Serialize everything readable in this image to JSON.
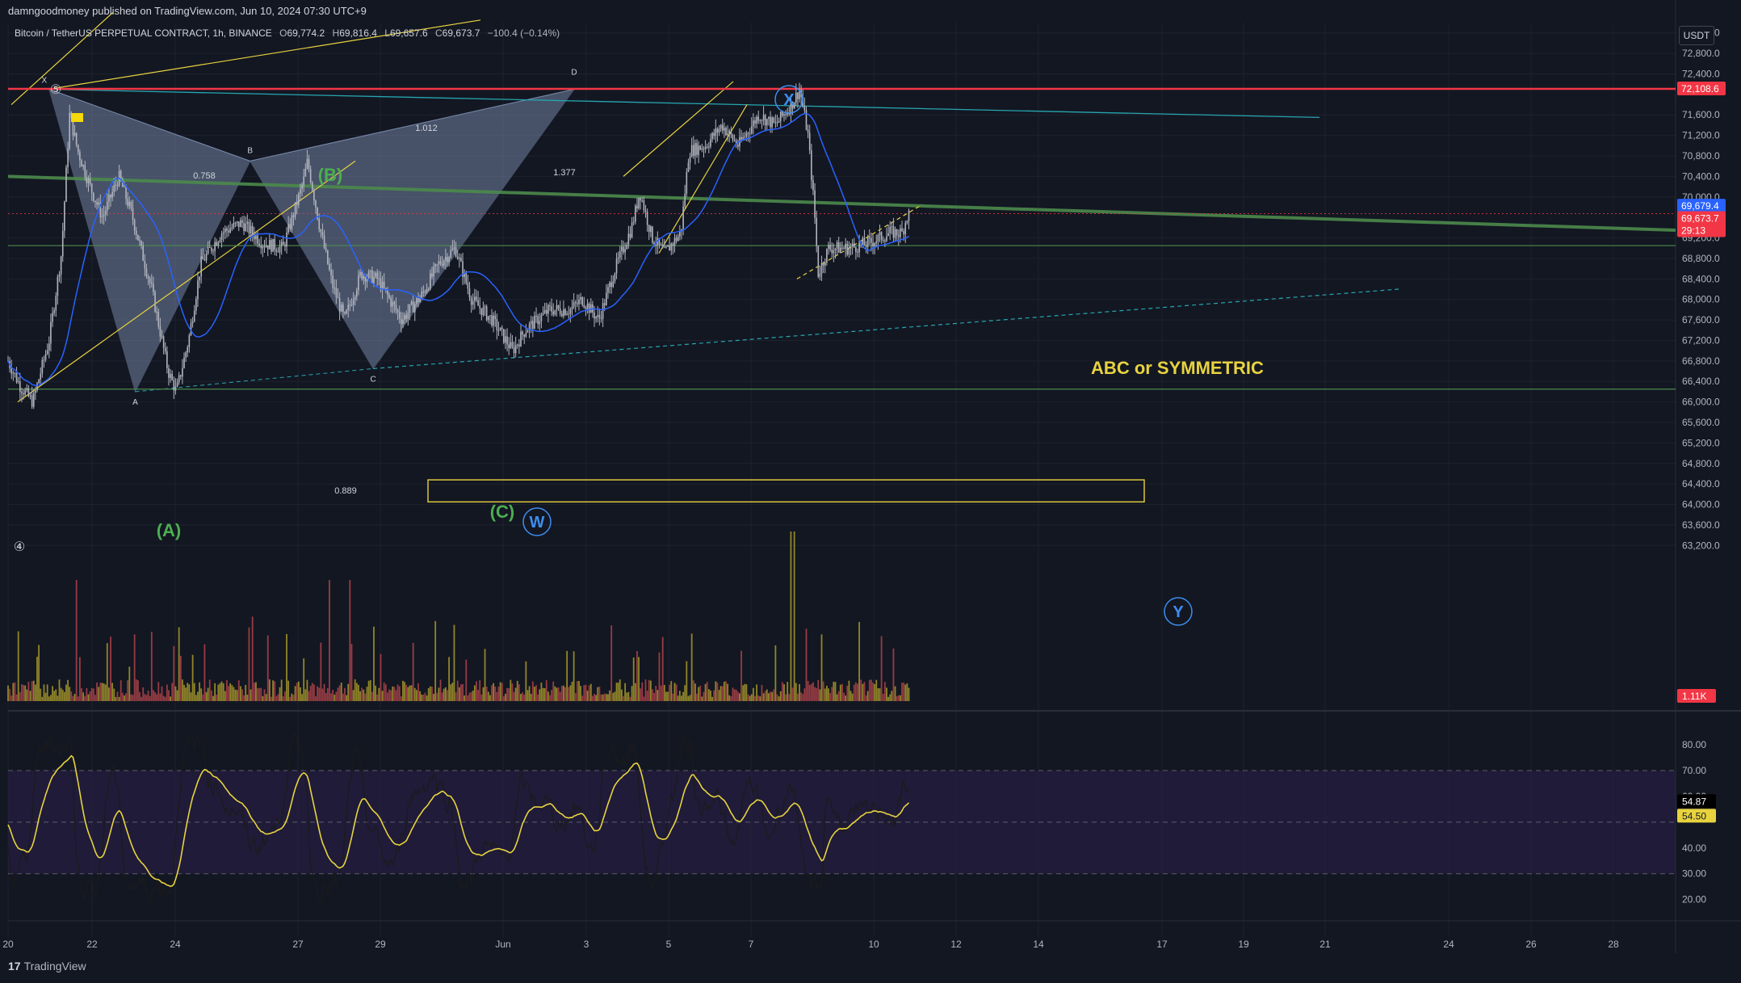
{
  "header": {
    "publisher": "damngoodmoney published on TradingView.com, Jun 10, 2024 07:30 UTC+9"
  },
  "symbol_bar": {
    "name": "Bitcoin / TetherUS PERPETUAL CONTRACT, 1h, BINANCE",
    "open_label": "O",
    "open": "69,774.2",
    "high_label": "H",
    "high": "69,816.4",
    "low_label": "L",
    "low": "69,657.6",
    "close_label": "C",
    "close": "69,673.7",
    "change": "−100.4 (−0.14%)"
  },
  "currency_button": "USDT",
  "footer": {
    "logo": "17",
    "brand": "TradingView"
  },
  "colors": {
    "background": "#131722",
    "grid": "#1e222d",
    "candle": "#b2b5be",
    "ma_blue": "#2962ff",
    "red_line": "#f23645",
    "green_line": "#4c8a4c",
    "yellow": "#e8d33f",
    "teal": "#26a6b0",
    "harmonic_fill": "#8fa3c9",
    "rsi_band": "#2a1f4a",
    "wave_green": "#4caf50",
    "wave_blue": "#3d8ef0"
  },
  "chart_data": {
    "type": "candlestick",
    "price_axis": {
      "ticks": [
        "73,200.0",
        "72,800.0",
        "72,400.0",
        "71,600.0",
        "71,200.0",
        "70,800.0",
        "70,400.0",
        "70,000.0",
        "69,200.0",
        "68,800.0",
        "68,400.0",
        "68,000.0",
        "67,600.0",
        "67,200.0",
        "66,800.0",
        "66,400.0",
        "66,000.0",
        "65,600.0",
        "65,200.0",
        "64,800.0",
        "64,400.0",
        "64,000.0",
        "63,600.0",
        "63,200.0"
      ],
      "range": [
        63000,
        73400
      ]
    },
    "time_axis": {
      "ticks": [
        "20",
        "22",
        "24",
        "27",
        "29",
        "Jun",
        "3",
        "5",
        "7",
        "10",
        "12",
        "14",
        "17",
        "19",
        "21",
        "24",
        "26",
        "28"
      ]
    },
    "price_labels": [
      {
        "text": "72,108.6",
        "price": 72108.6,
        "color": "#f23645"
      },
      {
        "text": "69,679.4",
        "price": 69679.4,
        "color": "#2962ff"
      },
      {
        "text": "69,673.7",
        "price": 69673.7,
        "color": "#f23645"
      },
      {
        "text": "29:13",
        "price": 69530,
        "color": "#f23645"
      }
    ],
    "horizontal_lines": [
      {
        "price": 72108.6,
        "color": "#f23645"
      },
      {
        "price": 69050,
        "color": "#4c8a4c"
      },
      {
        "price": 66250,
        "color": "#4c8a4c"
      }
    ],
    "harmonic_pattern": {
      "points": [
        {
          "label": "X",
          "price": 72100
        },
        {
          "label": "A",
          "price": 66200
        },
        {
          "label": "B",
          "price": 70700
        },
        {
          "label": "C",
          "price": 66650
        },
        {
          "label": "D",
          "price": 72100
        }
      ],
      "ratios": [
        "0.758",
        "1.377",
        "0.889",
        "1.012"
      ]
    },
    "wave_labels": [
      "(A)",
      "(B)",
      "(C)",
      "W",
      "X",
      "Y",
      "⑤",
      "④"
    ],
    "annotation": "ABC or SYMMETRIC",
    "volume": {
      "last_label": "1.11K"
    },
    "rsi": {
      "ticks": [
        "80.00",
        "70.00",
        "60.00",
        "40.00",
        "30.00",
        "20.00"
      ],
      "range": [
        18,
        86
      ],
      "band": [
        30,
        70
      ],
      "mid": 50,
      "value_label": "54.87",
      "ma_label": "54.50"
    }
  }
}
